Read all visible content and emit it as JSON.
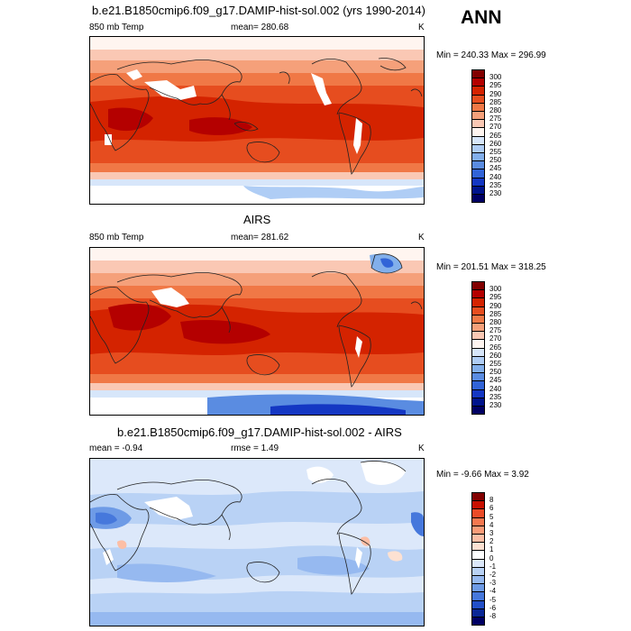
{
  "season": "ANN",
  "units": "K",
  "panels": [
    {
      "id": "model",
      "title": "b.e21.B1850cmip6.f09_g17.DAMIP-hist-sol.002 (yrs 1990-2014)",
      "left_label": "850 mb Temp",
      "center_label": "mean= 280.68",
      "units": "K",
      "minmax": "Min = 240.33 Max = 296.99",
      "colorbar_labels": [
        "300",
        "295",
        "290",
        "285",
        "280",
        "275",
        "270",
        "265",
        "260",
        "255",
        "250",
        "245",
        "240",
        "235",
        "230"
      ]
    },
    {
      "id": "obs",
      "title": "AIRS",
      "left_label": "850 mb Temp",
      "center_label": "mean= 281.62",
      "units": "K",
      "minmax": "Min = 201.51 Max = 318.25",
      "colorbar_labels": [
        "300",
        "295",
        "290",
        "285",
        "280",
        "275",
        "270",
        "265",
        "260",
        "255",
        "250",
        "245",
        "240",
        "235",
        "230"
      ]
    },
    {
      "id": "diff",
      "title": "b.e21.B1850cmip6.f09_g17.DAMIP-hist-sol.002 - AIRS",
      "left_label": "mean =  -0.94",
      "center_label": "rmse =    1.49",
      "units": "K",
      "minmax": "Min =  -9.66 Max =   3.92",
      "colorbar_labels": [
        "8",
        "6",
        "5",
        "4",
        "3",
        "2",
        "1",
        "0",
        "-1",
        "-2",
        "-3",
        "-4",
        "-5",
        "-6",
        "-8"
      ]
    }
  ],
  "colors": {
    "abs_scale": [
      "#820000",
      "#b40000",
      "#d42300",
      "#e64d1f",
      "#f07846",
      "#f5a07a",
      "#fac8b4",
      "#fff5f0",
      "#d7e6fa",
      "#afcdf5",
      "#82afeb",
      "#5a8ce1",
      "#3264d7",
      "#1437c3",
      "#00148c",
      "#000064"
    ],
    "diff_scale": [
      "#820000",
      "#c80f00",
      "#eb4b28",
      "#f57850",
      "#fa9b78",
      "#fcbea5",
      "#fde1d2",
      "#ffffff",
      "#dce8fa",
      "#b9d2f5",
      "#96b9f0",
      "#6e9be6",
      "#4678dc",
      "#2350c8",
      "#0a2896",
      "#000064"
    ]
  }
}
